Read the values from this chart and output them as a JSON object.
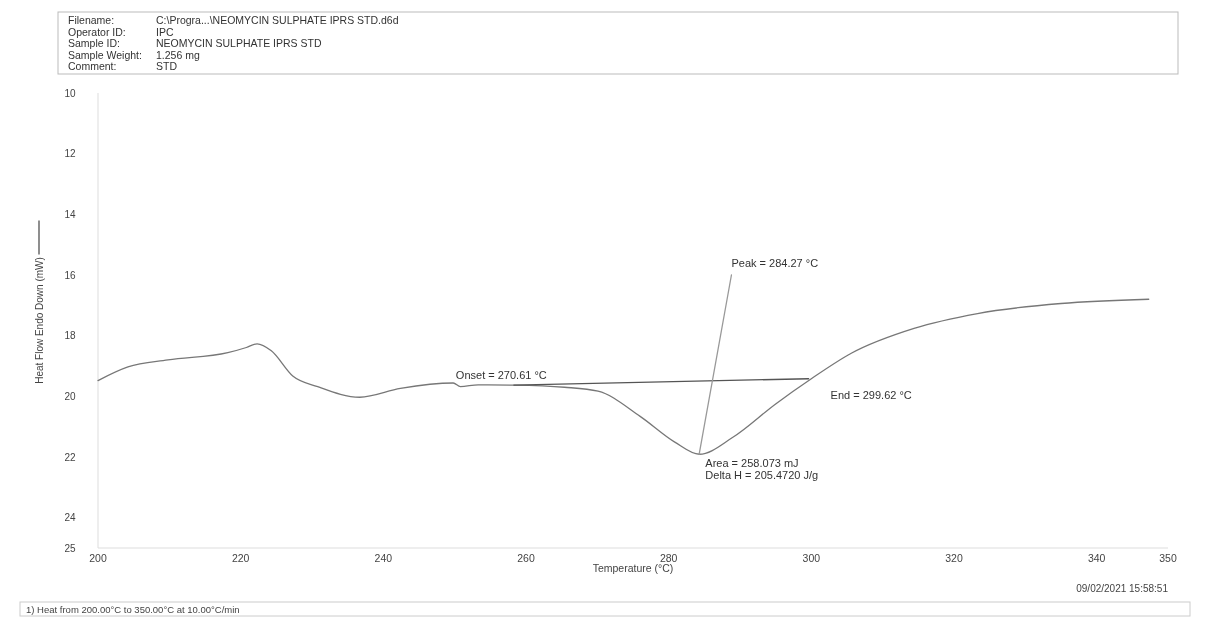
{
  "chart_data": {
    "type": "line",
    "xlabel": "Temperature (°C)",
    "ylabel": "Heat Flow Endo Down (mW)",
    "xlim": [
      200,
      350
    ],
    "xticks": [
      200,
      220,
      240,
      260,
      280,
      300,
      320,
      340,
      350
    ],
    "ylim": [
      25,
      10
    ],
    "yticks": [
      10,
      12,
      14,
      16,
      18,
      20,
      22,
      24,
      25
    ],
    "grid": false,
    "marker": "none",
    "line_style": "solid",
    "series": [
      {
        "color": "#777777",
        "x": [
          200,
          204.2,
          209.8,
          218.2,
          220.8,
          222.3,
          224.3,
          227.3,
          230.8,
          236.7,
          242.4,
          249.8,
          250.8,
          253.3,
          258.3,
          265.4,
          270.1,
          276,
          280.8,
          284.3,
          289,
          295,
          300,
          305.6,
          314.4,
          323.3,
          335,
          347.3
        ],
        "values": [
          19.48,
          19.03,
          18.8,
          18.56,
          18.39,
          18.27,
          18.5,
          19.33,
          19.68,
          20.03,
          19.74,
          19.56,
          19.68,
          19.62,
          19.63,
          19.7,
          19.83,
          20.66,
          21.5,
          21.91,
          21.35,
          20.25,
          19.42,
          18.58,
          17.76,
          17.27,
          16.94,
          16.8
        ]
      },
      {
        "color": "#555555",
        "x": [
          258.3,
          299.62
        ],
        "values": [
          19.63,
          19.42
        ]
      },
      {
        "color": "#999999",
        "x": [
          284.27,
          288.8
        ],
        "values": [
          21.91,
          16.0
        ]
      }
    ],
    "annotations": [
      "Filename: C:\\Progra...\\NEOMYCIN SULPHATE IPRS STD.d6d",
      "Operator ID: IPC",
      "Sample ID: NEOMYCIN SULPHATE IPRS STD",
      "Sample Weight: 1.256 mg",
      "Comment: STD",
      {
        "text": "Onset = 270.61 °C",
        "x": 258.3,
        "y": 19.63
      },
      {
        "text": "Peak = 284.27 °C",
        "x": 288.8,
        "y": 16.0
      },
      {
        "text": "End = 299.62 °C",
        "x": 299.62,
        "y": 19.42
      },
      {
        "text": "Area = 258.073 mJ",
        "x": 284.3,
        "y": 21.91
      },
      {
        "text": "Delta H = 205.4720 J/g",
        "x": 284.3,
        "y": 21.91
      },
      "09/02/2021 15:58:51",
      "1) Heat from 200.00°C to 350.00°C at 10.00°C/min"
    ]
  }
}
